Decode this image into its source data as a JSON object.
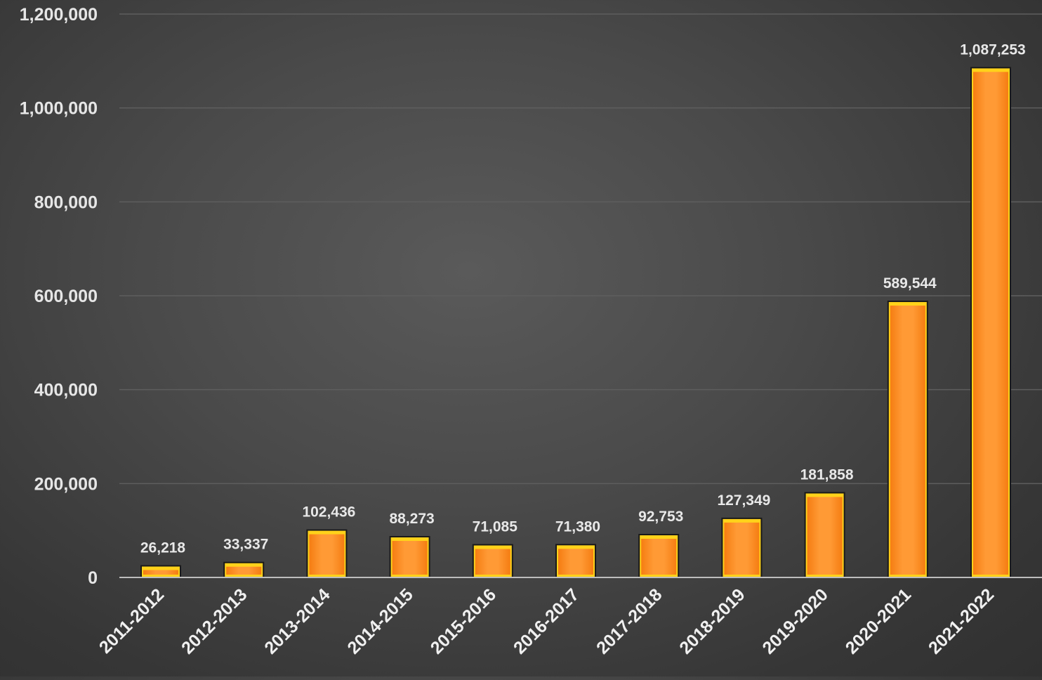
{
  "chart_data": {
    "type": "bar",
    "title": "",
    "xlabel": "",
    "ylabel": "",
    "categories": [
      "2011-2012",
      "2012-2013",
      "2013-2014",
      "2014-2015",
      "2015-2016",
      "2016-2017",
      "2017-2018",
      "2018-2019",
      "2019-2020",
      "2020-2021",
      "2021-2022"
    ],
    "values": [
      26218,
      33337,
      102436,
      88273,
      71085,
      71380,
      92753,
      127349,
      181858,
      589544,
      1087253
    ],
    "value_labels": [
      "26,218",
      "33,337",
      "102,436",
      "88,273",
      "71,085",
      "71,380",
      "92,753",
      "127,349",
      "181,858",
      "589,544",
      "1,087,253"
    ],
    "ylim": [
      0,
      1200000
    ],
    "y_ticks": [
      0,
      200000,
      400000,
      600000,
      800000,
      1000000,
      1200000
    ],
    "y_tick_labels": [
      "0",
      "200,000",
      "400,000",
      "600,000",
      "800,000",
      "1,000,000",
      "1,200,000"
    ],
    "grid": true,
    "legend": "none",
    "colors": {
      "bar_fill": "#f7861e",
      "bar_highlight": "#ffa040",
      "bar_border": "#1a1a1a",
      "bar_rim": "#ffd21a",
      "background": "#4a4a4a",
      "gridline": "#5e5e5e",
      "text": "#e6e6e6"
    }
  }
}
